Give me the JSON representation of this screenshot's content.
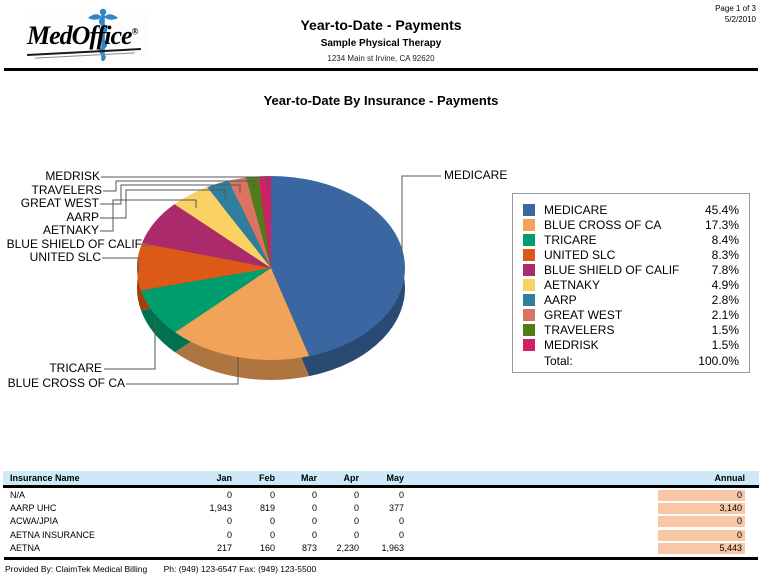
{
  "page_info": {
    "page": "Page 1 of 3",
    "date": "5/2/2010"
  },
  "header": {
    "logo_text": "MedOffice",
    "logo_reg": "®",
    "title": "Year-to-Date - Payments",
    "subtitle": "Sample Physical Therapy",
    "address": "1234 Main st Irvine, CA  92620"
  },
  "chart_data": {
    "type": "pie",
    "title": "Year-to-Date By Insurance - Payments",
    "unit": "%",
    "style": "3d-pie-with-callout-labels",
    "legend_position": "right",
    "series": [
      {
        "name": "MEDICARE",
        "value": 45.4,
        "color": "#3A67A1"
      },
      {
        "name": "BLUE CROSS OF CA",
        "value": 17.3,
        "color": "#F1A35A"
      },
      {
        "name": "TRICARE",
        "value": 8.4,
        "color": "#009E6E"
      },
      {
        "name": "UNITED SLC",
        "value": 8.3,
        "color": "#DC5918"
      },
      {
        "name": "BLUE SHIELD OF CALIF",
        "value": 7.8,
        "color": "#AB2A6C"
      },
      {
        "name": "AETNAKY",
        "value": 4.9,
        "color": "#FAD264"
      },
      {
        "name": "AARP",
        "value": 2.8,
        "color": "#2F7E9D"
      },
      {
        "name": "GREAT WEST",
        "value": 2.1,
        "color": "#DB7363"
      },
      {
        "name": "TRAVELERS",
        "value": 1.5,
        "color": "#4E7D19"
      },
      {
        "name": "MEDRISK",
        "value": 1.5,
        "color": "#CE2264"
      }
    ],
    "legend": {
      "total_label": "Total:",
      "total_value": "100.0%"
    }
  },
  "table": {
    "headers": [
      "Insurance Name",
      "Jan",
      "Feb",
      "Mar",
      "Apr",
      "May",
      "Annual"
    ],
    "header_bg_color": "#CDE9F7",
    "annual_highlight_color": "#F9C7A5",
    "rows": [
      {
        "name": "N/A",
        "months": [
          "0",
          "0",
          "0",
          "0",
          "0"
        ],
        "annual": "0"
      },
      {
        "name": "AARP UHC",
        "months": [
          "1,943",
          "819",
          "0",
          "0",
          "377"
        ],
        "annual": "3,140"
      },
      {
        "name": "ACWA/JPIA",
        "months": [
          "0",
          "0",
          "0",
          "0",
          "0"
        ],
        "annual": "0"
      },
      {
        "name": "AETNA INSURANCE",
        "months": [
          "0",
          "0",
          "0",
          "0",
          "0"
        ],
        "annual": "0"
      },
      {
        "name": "AETNA",
        "months": [
          "217",
          "160",
          "873",
          "2,230",
          "1,963"
        ],
        "annual": "5,443"
      }
    ]
  },
  "footer": {
    "provided_by": "Provided By: ClaimTek Medical Billing",
    "contact": "Ph: (949) 123-6547 Fax: (949) 123-5500"
  }
}
